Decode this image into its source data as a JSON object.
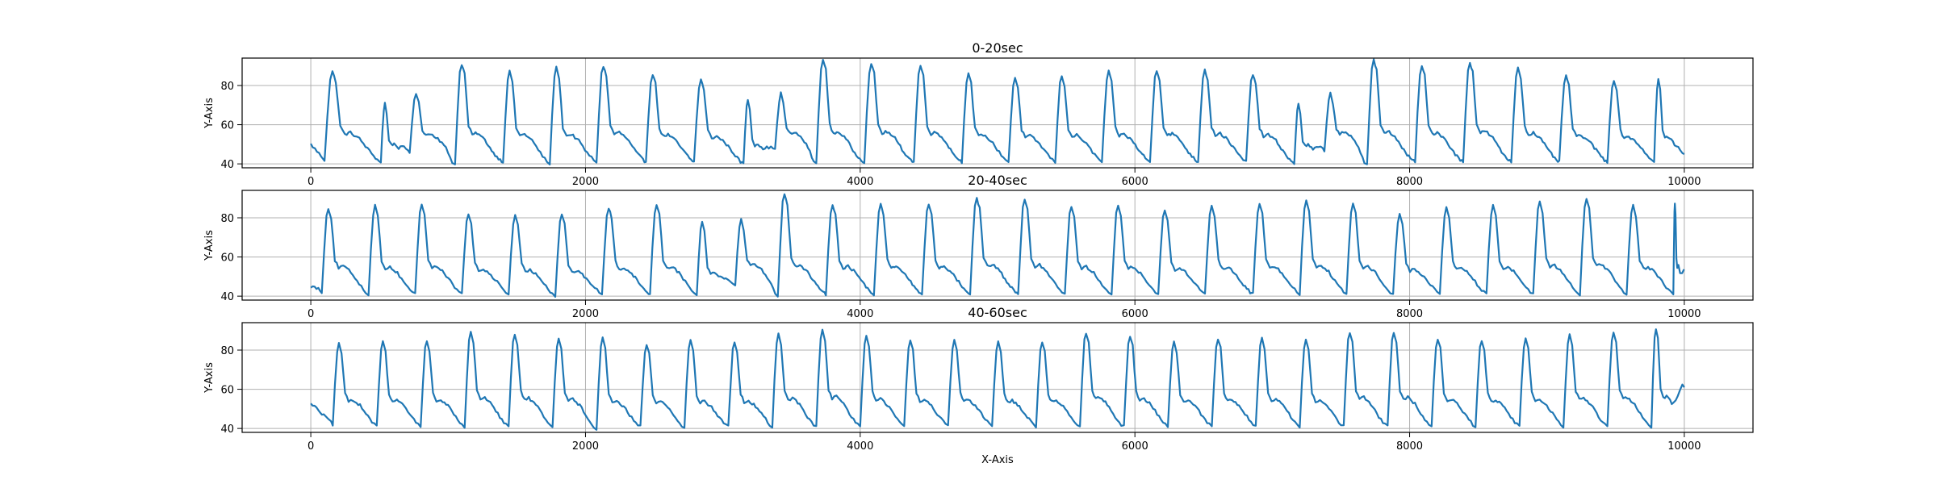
{
  "chart_data": [
    {
      "type": "line",
      "title": "0-20sec",
      "ylabel": "Y-Axis",
      "xlabel": "",
      "xlim": [
        -500,
        10500
      ],
      "ylim": [
        38,
        94
      ],
      "xticks": [
        0,
        2000,
        4000,
        6000,
        8000,
        10000
      ],
      "yticks": [
        40,
        60,
        80
      ],
      "grid": true,
      "line_color": "#1f77b4",
      "start_y": 50,
      "end_y": 45,
      "beats": [
        {
          "x": 100,
          "peak": 87,
          "base": 42
        },
        {
          "x": 510,
          "peak": 71,
          "base": 41
        },
        {
          "x": 720,
          "peak": 76,
          "base": 46
        },
        {
          "x": 1050,
          "peak": 91,
          "base": 40
        },
        {
          "x": 1400,
          "peak": 87,
          "base": 41
        },
        {
          "x": 1740,
          "peak": 89,
          "base": 40
        },
        {
          "x": 2080,
          "peak": 90,
          "base": 41
        },
        {
          "x": 2440,
          "peak": 86,
          "base": 41
        },
        {
          "x": 2790,
          "peak": 83,
          "base": 41
        },
        {
          "x": 3150,
          "peak": 73,
          "base": 40
        },
        {
          "x": 3380,
          "peak": 76,
          "base": 47
        },
        {
          "x": 3680,
          "peak": 93,
          "base": 40
        },
        {
          "x": 4030,
          "peak": 91,
          "base": 41
        },
        {
          "x": 4390,
          "peak": 90,
          "base": 41
        },
        {
          "x": 4740,
          "peak": 86,
          "base": 41
        },
        {
          "x": 5080,
          "peak": 84,
          "base": 41
        },
        {
          "x": 5420,
          "peak": 85,
          "base": 41
        },
        {
          "x": 5760,
          "peak": 87,
          "base": 41
        },
        {
          "x": 6110,
          "peak": 88,
          "base": 41
        },
        {
          "x": 6460,
          "peak": 88,
          "base": 41
        },
        {
          "x": 6810,
          "peak": 86,
          "base": 41
        },
        {
          "x": 7160,
          "peak": 71,
          "base": 40
        },
        {
          "x": 7380,
          "peak": 76,
          "base": 47
        },
        {
          "x": 7690,
          "peak": 93,
          "base": 40
        },
        {
          "x": 8040,
          "peak": 90,
          "base": 41
        },
        {
          "x": 8390,
          "peak": 92,
          "base": 41
        },
        {
          "x": 8740,
          "peak": 89,
          "base": 41
        },
        {
          "x": 9090,
          "peak": 85,
          "base": 41
        },
        {
          "x": 9440,
          "peak": 83,
          "base": 41
        },
        {
          "x": 9780,
          "peak": 83,
          "base": 41
        }
      ]
    },
    {
      "type": "line",
      "title": "20-40sec",
      "ylabel": "Y-Axis",
      "xlabel": "",
      "xlim": [
        -500,
        10500
      ],
      "ylim": [
        38,
        94
      ],
      "xticks": [
        0,
        2000,
        4000,
        6000,
        8000,
        10000
      ],
      "yticks": [
        40,
        60,
        80
      ],
      "grid": true,
      "line_color": "#1f77b4",
      "start_y": 45,
      "end_y": 53,
      "beats": [
        {
          "x": 80,
          "peak": 85,
          "base": 42
        },
        {
          "x": 420,
          "peak": 86,
          "base": 41
        },
        {
          "x": 760,
          "peak": 87,
          "base": 41
        },
        {
          "x": 1100,
          "peak": 82,
          "base": 41
        },
        {
          "x": 1440,
          "peak": 81,
          "base": 41
        },
        {
          "x": 1780,
          "peak": 82,
          "base": 40
        },
        {
          "x": 2120,
          "peak": 85,
          "base": 41
        },
        {
          "x": 2470,
          "peak": 87,
          "base": 41
        },
        {
          "x": 2810,
          "peak": 78,
          "base": 41
        },
        {
          "x": 3090,
          "peak": 79,
          "base": 46
        },
        {
          "x": 3400,
          "peak": 92,
          "base": 40
        },
        {
          "x": 3750,
          "peak": 87,
          "base": 41
        },
        {
          "x": 4100,
          "peak": 87,
          "base": 41
        },
        {
          "x": 4450,
          "peak": 87,
          "base": 41
        },
        {
          "x": 4800,
          "peak": 90,
          "base": 41
        },
        {
          "x": 5150,
          "peak": 89,
          "base": 41
        },
        {
          "x": 5490,
          "peak": 86,
          "base": 41
        },
        {
          "x": 5830,
          "peak": 86,
          "base": 41
        },
        {
          "x": 6170,
          "peak": 84,
          "base": 41
        },
        {
          "x": 6510,
          "peak": 86,
          "base": 41
        },
        {
          "x": 6860,
          "peak": 87,
          "base": 41
        },
        {
          "x": 7200,
          "peak": 89,
          "base": 41
        },
        {
          "x": 7540,
          "peak": 87,
          "base": 41
        },
        {
          "x": 7880,
          "peak": 82,
          "base": 41
        },
        {
          "x": 8220,
          "peak": 85,
          "base": 41
        },
        {
          "x": 8560,
          "peak": 86,
          "base": 41
        },
        {
          "x": 8900,
          "peak": 88,
          "base": 41
        },
        {
          "x": 9240,
          "peak": 90,
          "base": 41
        },
        {
          "x": 9580,
          "peak": 86,
          "base": 41
        },
        {
          "x": 9920,
          "peak": 87,
          "base": 41
        }
      ]
    },
    {
      "type": "line",
      "title": "40-60sec",
      "ylabel": "Y-Axis",
      "xlabel": "X-Axis",
      "xlim": [
        -500,
        10500
      ],
      "ylim": [
        38,
        94
      ],
      "xticks": [
        0,
        2000,
        4000,
        6000,
        8000,
        10000
      ],
      "yticks": [
        40,
        60,
        80
      ],
      "grid": true,
      "line_color": "#1f77b4",
      "start_y": 53,
      "end_y": 61,
      "beats": [
        {
          "x": 160,
          "peak": 83,
          "base": 42
        },
        {
          "x": 480,
          "peak": 84,
          "base": 41
        },
        {
          "x": 800,
          "peak": 85,
          "base": 41
        },
        {
          "x": 1120,
          "peak": 89,
          "base": 41
        },
        {
          "x": 1440,
          "peak": 88,
          "base": 41
        },
        {
          "x": 1760,
          "peak": 86,
          "base": 41
        },
        {
          "x": 2080,
          "peak": 86,
          "base": 40
        },
        {
          "x": 2400,
          "peak": 83,
          "base": 41
        },
        {
          "x": 2720,
          "peak": 85,
          "base": 40
        },
        {
          "x": 3040,
          "peak": 84,
          "base": 41
        },
        {
          "x": 3360,
          "peak": 88,
          "base": 41
        },
        {
          "x": 3680,
          "peak": 90,
          "base": 41
        },
        {
          "x": 4000,
          "peak": 87,
          "base": 41
        },
        {
          "x": 4320,
          "peak": 85,
          "base": 41
        },
        {
          "x": 4640,
          "peak": 85,
          "base": 41
        },
        {
          "x": 4960,
          "peak": 84,
          "base": 41
        },
        {
          "x": 5280,
          "peak": 84,
          "base": 41
        },
        {
          "x": 5600,
          "peak": 89,
          "base": 41
        },
        {
          "x": 5920,
          "peak": 87,
          "base": 41
        },
        {
          "x": 6240,
          "peak": 84,
          "base": 41
        },
        {
          "x": 6560,
          "peak": 86,
          "base": 41
        },
        {
          "x": 6880,
          "peak": 86,
          "base": 41
        },
        {
          "x": 7200,
          "peak": 85,
          "base": 41
        },
        {
          "x": 7520,
          "peak": 89,
          "base": 41
        },
        {
          "x": 7840,
          "peak": 89,
          "base": 41
        },
        {
          "x": 8160,
          "peak": 86,
          "base": 41
        },
        {
          "x": 8480,
          "peak": 85,
          "base": 41
        },
        {
          "x": 8800,
          "peak": 86,
          "base": 41
        },
        {
          "x": 9120,
          "peak": 88,
          "base": 41
        },
        {
          "x": 9440,
          "peak": 89,
          "base": 41
        },
        {
          "x": 9760,
          "peak": 91,
          "base": 41
        }
      ]
    }
  ]
}
